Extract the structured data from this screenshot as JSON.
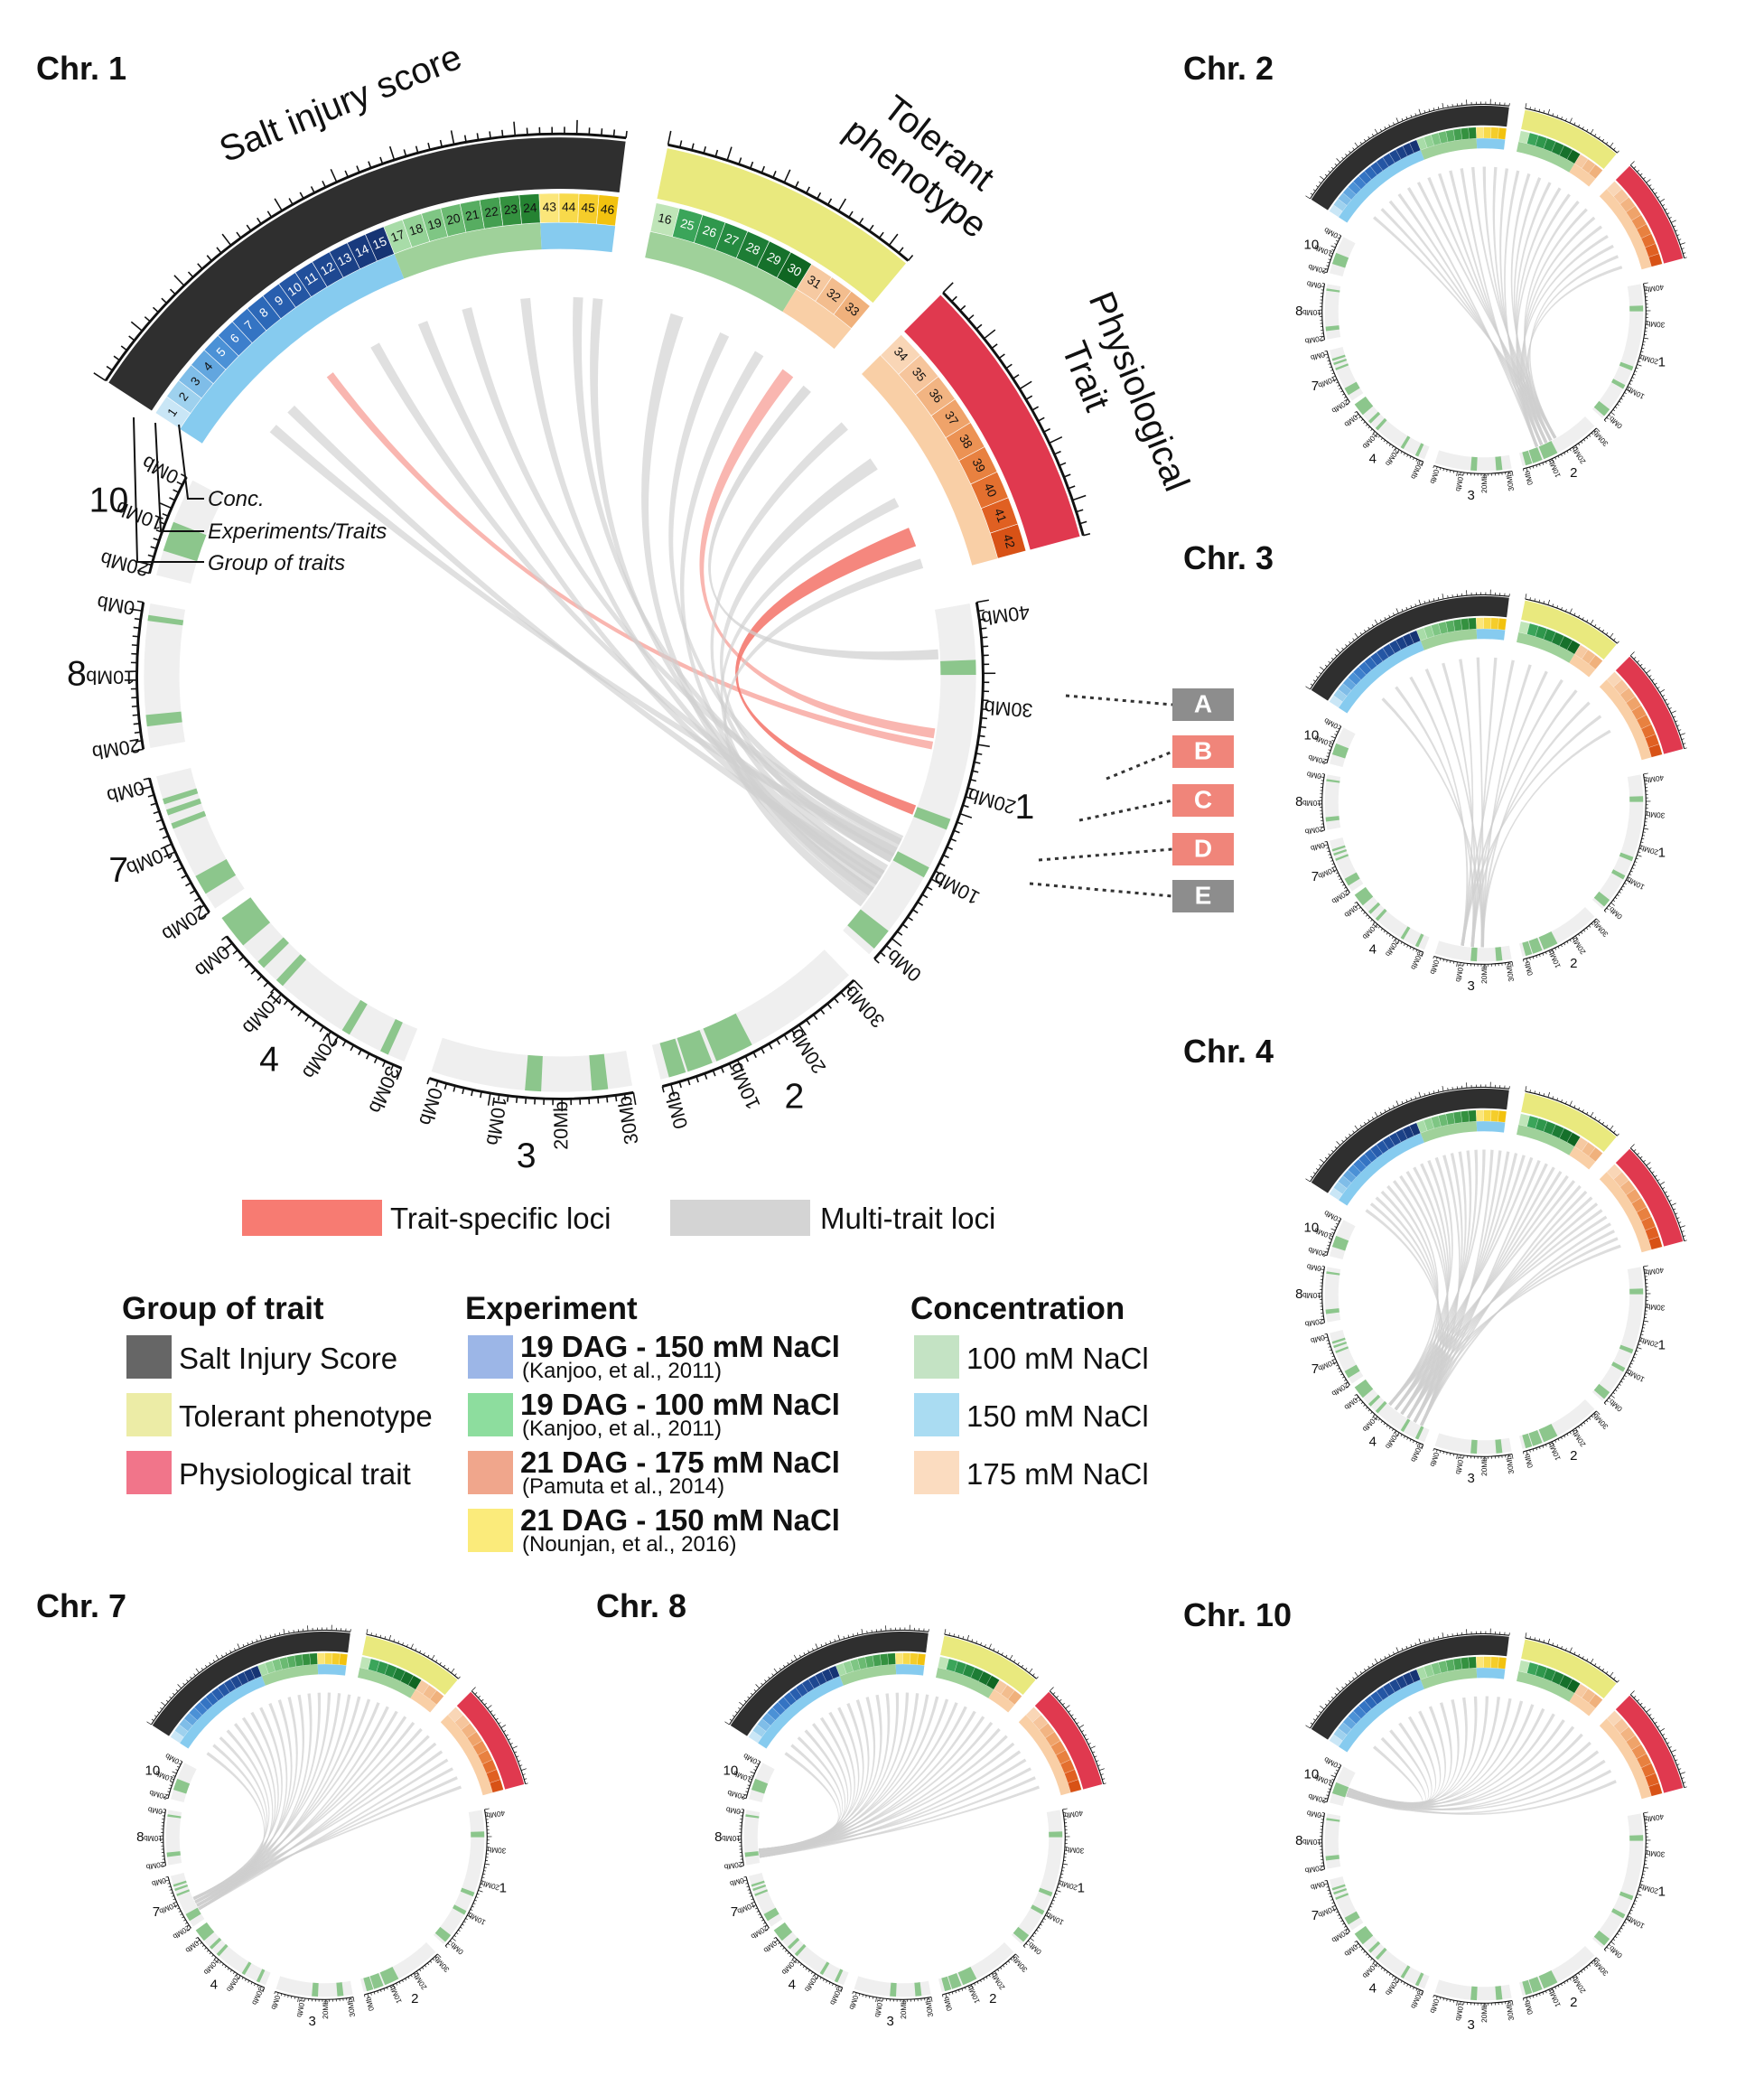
{
  "main_panel": {
    "title": "Chr. 1",
    "groups": [
      {
        "label": "Salt injury score",
        "color": "#2f2f2f"
      },
      {
        "label": "Tolerant phenotype",
        "color": "#e9e97e"
      },
      {
        "label": "Physiological Trait",
        "color": "#e0394f"
      }
    ],
    "annotations": {
      "conc": "Conc.",
      "experiments": "Experiments/Traits",
      "group": "Group of traits"
    },
    "loci_boxes": [
      {
        "label": "A",
        "color": "#8d8d8d"
      },
      {
        "label": "B",
        "color": "#f0857a"
      },
      {
        "label": "C",
        "color": "#f0857a"
      },
      {
        "label": "D",
        "color": "#f0857a"
      },
      {
        "label": "E",
        "color": "#8d8d8d"
      }
    ]
  },
  "chromosomes": [
    {
      "name": "1",
      "ticks": [
        "0Mb",
        "10Mb",
        "20Mb",
        "30Mb",
        "40Mb"
      ]
    },
    {
      "name": "2",
      "ticks": [
        "0Mb",
        "10Mb",
        "20Mb",
        "30Mb"
      ]
    },
    {
      "name": "3",
      "ticks": [
        "0Mb",
        "10Mb",
        "20Mb",
        "30Mb"
      ]
    },
    {
      "name": "4",
      "ticks": [
        "0Mb",
        "10Mb",
        "20Mb",
        "30Mb"
      ]
    },
    {
      "name": "7",
      "ticks": [
        "0Mb",
        "10Mb",
        "20Mb"
      ]
    },
    {
      "name": "8",
      "ticks": [
        "0Mb",
        "10Mb",
        "20Mb"
      ]
    },
    {
      "name": "10",
      "ticks": [
        "0Mb",
        "10Mb",
        "20Mb"
      ]
    }
  ],
  "trait_numbers": {
    "salt_injury": [
      "1",
      "2",
      "3",
      "4",
      "5",
      "6",
      "7",
      "8",
      "9",
      "10",
      "11",
      "12",
      "13",
      "14",
      "15",
      "17",
      "18",
      "19",
      "20",
      "21",
      "22",
      "23",
      "24",
      "43",
      "44",
      "45",
      "46"
    ],
    "tolerant": [
      "16",
      "25",
      "26",
      "27",
      "28",
      "29",
      "30",
      "31",
      "32",
      "33"
    ],
    "physiological": [
      "34",
      "35",
      "36",
      "37",
      "38",
      "39",
      "40",
      "41",
      "42"
    ]
  },
  "link_key": {
    "trait_specific": {
      "label": "Trait-specific loci",
      "color": "#f77b72"
    },
    "multi_trait": {
      "label": "Multi-trait loci",
      "color": "#d4d4d4"
    }
  },
  "legend": {
    "group_heading": "Group of trait",
    "groups": [
      {
        "label": "Salt Injury Score",
        "color": "#666666"
      },
      {
        "label": "Tolerant phenotype",
        "color": "#ececa6"
      },
      {
        "label": "Physiological trait",
        "color": "#f1758a"
      }
    ],
    "experiment_heading": "Experiment",
    "experiments": [
      {
        "label": "19 DAG - 150 mM NaCl",
        "cite": "(Kanjoo, et al., 2011)",
        "color": "#9cb6e7"
      },
      {
        "label": "19 DAG - 100 mM NaCl",
        "cite": "(Kanjoo, et al., 2011)",
        "color": "#8ddd9e"
      },
      {
        "label": "21 DAG - 175 mM NaCl",
        "cite": "(Pamuta et al., 2014)",
        "color": "#f0a68c"
      },
      {
        "label": "21 DAG - 150 mM NaCl",
        "cite": "(Nounjan, et al., 2016)",
        "color": "#fbeb7b"
      }
    ],
    "concentration_heading": "Concentration",
    "concentrations": [
      {
        "label": "100 mM NaCl",
        "color": "#c4e3c4"
      },
      {
        "label": "150 mM NaCl",
        "color": "#aadcf2"
      },
      {
        "label": "175 mM NaCl",
        "color": "#fbdcc0"
      }
    ]
  },
  "small_panels": [
    {
      "title": "Chr. 2"
    },
    {
      "title": "Chr. 3"
    },
    {
      "title": "Chr. 4"
    },
    {
      "title": "Chr. 7"
    },
    {
      "title": "Chr. 8"
    },
    {
      "title": "Chr. 10"
    }
  ],
  "colors": {
    "chrom_track": "#efefef",
    "qtl_mark": "#8cc68c",
    "axis": "#111111",
    "salt_blue_dark": "#1f5fb0",
    "salt_green": "#6fc07c",
    "yellow_exp": "#f7d21d",
    "orange_exp": "#e88a3c",
    "conc_green": "#9fd19a",
    "conc_blue": "#86cbef",
    "conc_peach": "#f9cfa6"
  }
}
